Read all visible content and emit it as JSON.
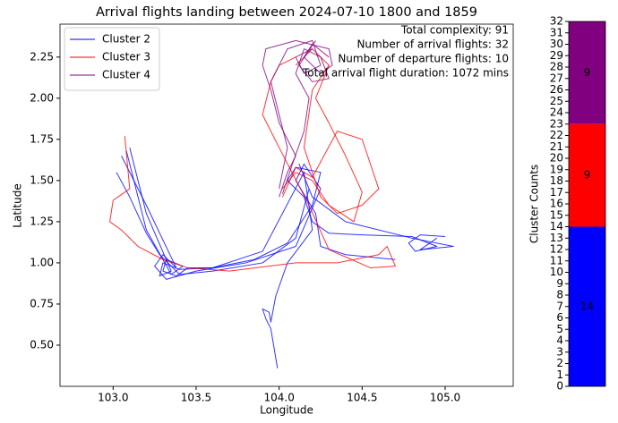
{
  "chart_data": [
    {
      "type": "trajectory",
      "title": "Arrival flights landing between 2024-07-10 1800 and 1859",
      "xlabel": "Longitude",
      "ylabel": "Latitude",
      "xlim": [
        102.68,
        105.41
      ],
      "ylim": [
        0.25,
        2.45
      ],
      "xticks": [
        {
          "value": 103,
          "label": "103.0"
        },
        103.5,
        {
          "value": 104,
          "label": "104.0"
        },
        104.5,
        {
          "value": 105,
          "label": "105.0"
        }
      ],
      "yticks": [
        {
          "value": 0.5,
          "label": "0.50"
        },
        {
          "value": 0.75,
          "label": "0.75"
        },
        {
          "value": 1,
          "label": "1.00"
        },
        {
          "value": 1.25,
          "label": "1.25"
        },
        {
          "value": 1.5,
          "label": "1.50"
        },
        {
          "value": 1.75,
          "label": "1.75"
        },
        {
          "value": 2,
          "label": "2.00"
        },
        {
          "value": 2.25,
          "label": "2.25"
        }
      ],
      "legend": "upper left",
      "annotations": [
        "Total complexity: 91",
        "Number of arrival flights: 32",
        "Number of departure flights: 10",
        "Total arrival flight duration: 1072 mins"
      ],
      "series": [
        {
          "name": "Cluster 2",
          "color": "#0000ff",
          "paths": [
            {
              "x": [
                105.0,
                104.85,
                104.78,
                104.82,
                104.95,
                104.8,
                104.5,
                104.3,
                104.2,
                104.15,
                104.05,
                104.1,
                104.25,
                104.2,
                104.05,
                103.85,
                103.6,
                103.45,
                103.38,
                103.3,
                103.32,
                103.42,
                103.35,
                103.2,
                103.08
              ],
              "y": [
                1.16,
                1.17,
                1.12,
                1.07,
                1.1,
                1.16,
                1.17,
                1.18,
                1.25,
                1.4,
                1.5,
                1.58,
                1.55,
                1.35,
                1.12,
                1.02,
                0.97,
                0.97,
                0.92,
                0.95,
                1.02,
                0.98,
                0.93,
                1.2,
                1.68
              ]
            },
            {
              "x": [
                103.99,
                103.95,
                103.92,
                103.9,
                103.94,
                103.95,
                103.98,
                104.05,
                104.2,
                104.15,
                103.9,
                103.6,
                103.4,
                103.3,
                103.28,
                103.35,
                103.2,
                103.1
              ],
              "y": [
                0.36,
                0.6,
                0.66,
                0.72,
                0.7,
                0.64,
                0.8,
                1.0,
                1.2,
                1.55,
                1.07,
                0.97,
                0.96,
                1.0,
                0.92,
                0.95,
                1.3,
                1.7
              ]
            },
            {
              "x": [
                103.02,
                103.1,
                103.2,
                103.28,
                103.4,
                103.6,
                103.9,
                104.1,
                104.18,
                104.12,
                104.2,
                104.4,
                104.8,
                105.05,
                104.85,
                104.95
              ],
              "y": [
                1.55,
                1.4,
                1.18,
                1.05,
                0.93,
                0.95,
                1.0,
                1.15,
                1.45,
                1.6,
                1.4,
                1.25,
                1.15,
                1.1,
                1.08,
                1.15
              ]
            },
            {
              "x": [
                104.7,
                104.4,
                104.25,
                104.22,
                104.1,
                104.15,
                104.25,
                104.1,
                103.8,
                103.5,
                103.32,
                103.25,
                103.3,
                103.38,
                103.2,
                103.05
              ],
              "y": [
                1.02,
                1.05,
                1.1,
                1.3,
                1.5,
                1.6,
                1.45,
                1.1,
                1.0,
                0.95,
                0.9,
                0.98,
                1.05,
                0.97,
                1.35,
                1.65
              ]
            }
          ]
        },
        {
          "name": "Cluster 3",
          "color": "#ff0000",
          "paths": [
            {
              "x": [
                103.07,
                103.1,
                103.0,
                102.98,
                103.05,
                103.15,
                103.3,
                103.45,
                103.7,
                104.1,
                104.35,
                104.45,
                104.6,
                104.65,
                104.7,
                104.55,
                104.3,
                104.18,
                104.0,
                103.9,
                103.95,
                104.0,
                104.1
              ],
              "y": [
                1.77,
                1.45,
                1.38,
                1.25,
                1.2,
                1.1,
                1.02,
                0.97,
                0.95,
                1.0,
                1.0,
                1.02,
                1.05,
                1.1,
                0.98,
                0.97,
                1.08,
                1.35,
                1.7,
                1.9,
                2.1,
                2.2,
                2.25
              ]
            },
            {
              "x": [
                104.02,
                104.1,
                104.2,
                104.3,
                104.45,
                104.5,
                104.4,
                104.3,
                104.22,
                104.3,
                104.2,
                104.1
              ],
              "y": [
                1.45,
                1.55,
                1.5,
                1.35,
                1.25,
                1.43,
                1.65,
                1.85,
                2.0,
                2.2,
                2.3,
                2.2
              ]
            },
            {
              "x": [
                104.02,
                104.1,
                104.2,
                104.35,
                104.5,
                104.55,
                104.6,
                104.5,
                104.35,
                104.25,
                104.15,
                104.2,
                104.3
              ],
              "y": [
                1.4,
                1.58,
                1.52,
                1.8,
                1.75,
                1.6,
                1.45,
                1.35,
                1.3,
                1.4,
                1.7,
                2.05,
                2.2
              ]
            }
          ]
        },
        {
          "name": "Cluster 4",
          "color": "#800080",
          "paths": [
            {
              "x": [
                104.0,
                104.05,
                104.1,
                104.0,
                103.95,
                103.9,
                103.92,
                104.1,
                104.3,
                104.32,
                104.25,
                104.15,
                104.2,
                104.3
              ],
              "y": [
                1.4,
                1.55,
                1.65,
                1.85,
                2.05,
                2.2,
                2.3,
                2.35,
                2.3,
                2.2,
                2.15,
                2.25,
                2.33,
                2.25
              ]
            },
            {
              "x": [
                104.02,
                104.08,
                104.15,
                104.18,
                104.1,
                104.15,
                104.25,
                104.3,
                104.2,
                104.12,
                104.22
              ],
              "y": [
                1.42,
                1.6,
                1.8,
                2.0,
                2.15,
                2.3,
                2.25,
                2.12,
                2.1,
                2.2,
                2.35
              ]
            },
            {
              "x": [
                104.0,
                104.05,
                104.0,
                103.95,
                104.05,
                104.2,
                104.25,
                104.15,
                104.1,
                104.2
              ],
              "y": [
                1.45,
                1.7,
                1.9,
                2.1,
                2.3,
                2.35,
                2.2,
                2.15,
                2.25,
                2.3
              ]
            }
          ]
        }
      ]
    },
    {
      "type": "stacked_bar",
      "ylabel": "Cluster Counts",
      "ylim": [
        0,
        32
      ],
      "yticks": [
        0,
        1,
        2,
        3,
        4,
        5,
        6,
        7,
        8,
        9,
        10,
        11,
        12,
        13,
        14,
        15,
        16,
        17,
        18,
        19,
        20,
        21,
        22,
        23,
        24,
        25,
        26,
        27,
        28,
        29,
        30,
        31,
        32
      ],
      "series": [
        {
          "color": "#0000ff",
          "values": [
            14
          ]
        },
        {
          "color": "#ff0000",
          "values": [
            9
          ]
        },
        {
          "color": "#800080",
          "values": [
            9
          ]
        }
      ]
    }
  ]
}
